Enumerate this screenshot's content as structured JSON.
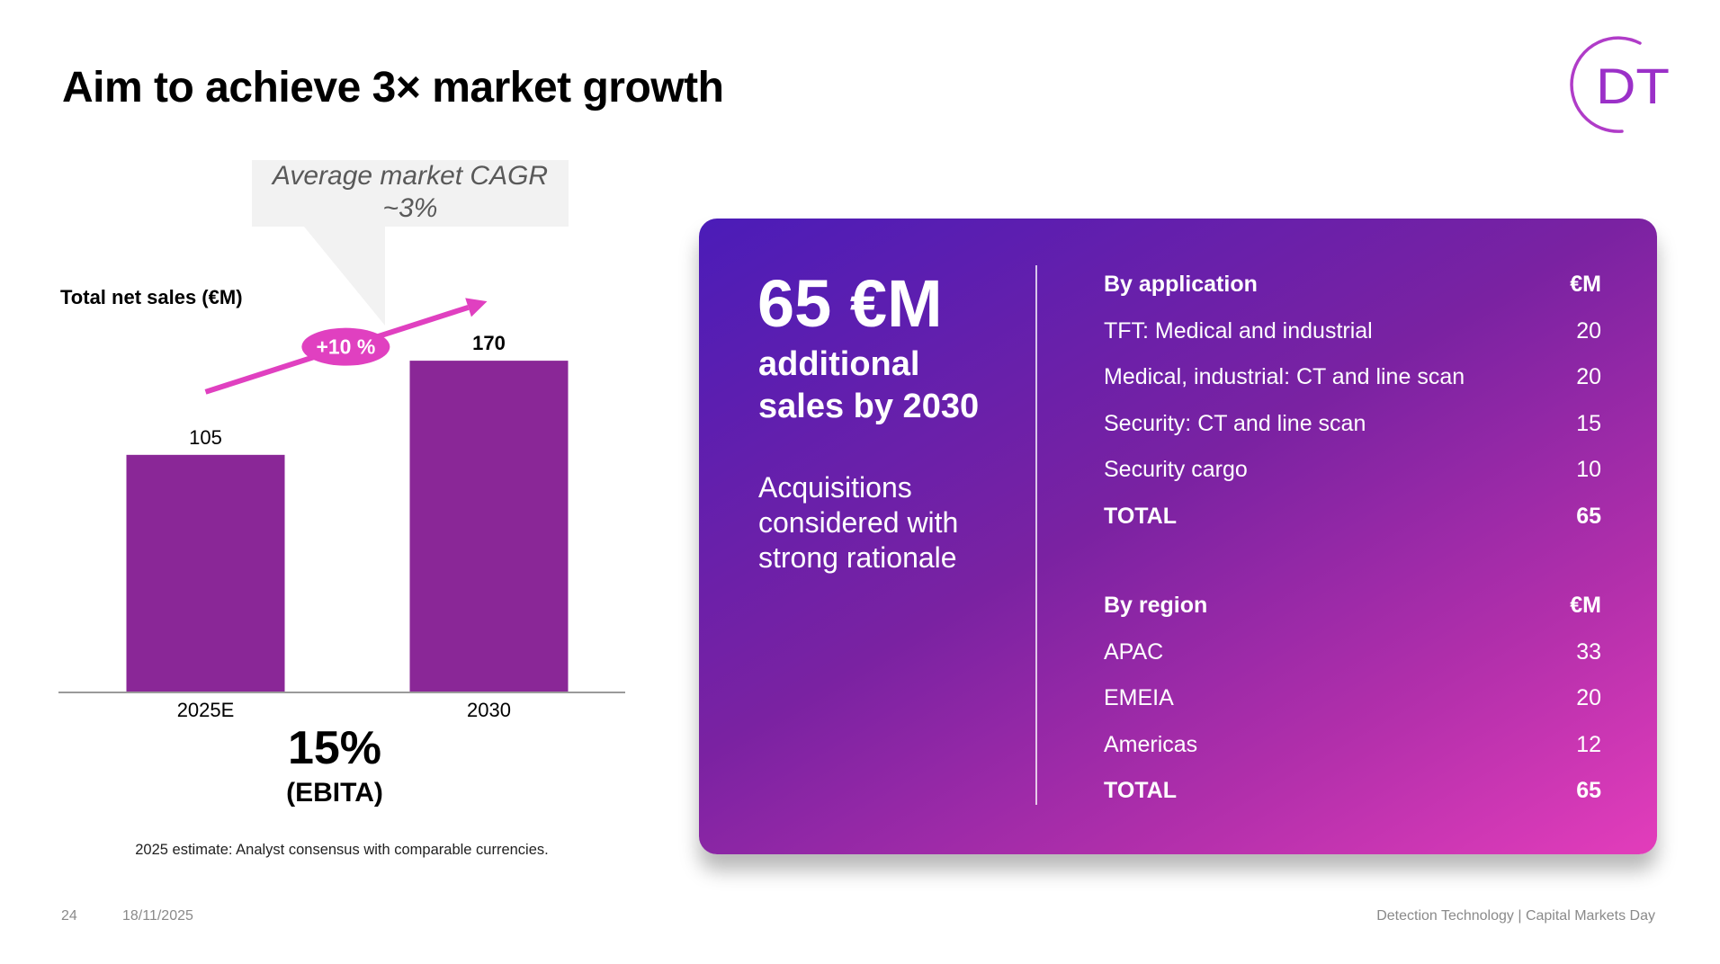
{
  "header": {
    "title": "Aim to achieve 3× market growth",
    "logo_text": "DT",
    "logo_color": "#9b30c8"
  },
  "callout": {
    "line1": "Average market CAGR",
    "line2": "~3%"
  },
  "chart_data": {
    "type": "bar",
    "title": "Total net sales (€M)",
    "xlabel": "",
    "ylabel": "",
    "categories": [
      "2025E",
      "2030"
    ],
    "values": [
      105,
      170
    ],
    "value_labels": [
      "105",
      "170"
    ],
    "ylim": [
      -59,
      180
    ],
    "grid": false,
    "bar_color": "#8a2797",
    "growth_annotation": {
      "label": "+10 %",
      "color": "#e040c0"
    }
  },
  "ebita": {
    "value": "15%",
    "label": "(EBITA)"
  },
  "footnote": "2025 estimate: Analyst consensus with comparable currencies.",
  "card": {
    "headline": "65 €M",
    "sub_line1": "additional",
    "sub_line2": "sales by 2030",
    "note_line1": "Acquisitions",
    "note_line2": "considered with",
    "note_line3": "strong rationale",
    "gradient_start": "#4b1cb8",
    "gradient_end": "#e33dbb",
    "by_application": {
      "header": "By application",
      "unit": "€M",
      "rows": [
        {
          "label": "TFT: Medical and industrial",
          "value": "20"
        },
        {
          "label": "Medical, industrial: CT and line scan",
          "value": "20"
        },
        {
          "label": "Security: CT and line scan",
          "value": "15"
        },
        {
          "label": "Security cargo",
          "value": "10"
        }
      ],
      "total_label": "TOTAL",
      "total_value": "65"
    },
    "by_region": {
      "header": "By region",
      "unit": "€M",
      "rows": [
        {
          "label": "APAC",
          "value": "33"
        },
        {
          "label": "EMEIA",
          "value": "20"
        },
        {
          "label": "Americas",
          "value": "12"
        }
      ],
      "total_label": "TOTAL",
      "total_value": "65"
    }
  },
  "footer": {
    "page_number": "24",
    "date": "18/11/2025",
    "right_text": "Detection Technology | Capital Markets Day"
  }
}
